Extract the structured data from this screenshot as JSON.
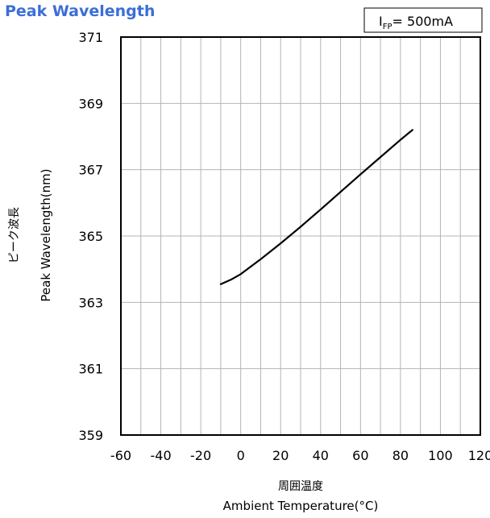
{
  "chart_data": {
    "type": "line",
    "title": "Peak Wavelength",
    "condition": {
      "symbol": "I",
      "subscript": "FP",
      "value": "= 500mA"
    },
    "xlabel_jp": "周囲温度",
    "xlabel": "Ambient Temperature(°C)",
    "ylabel_jp": "ピーク波長",
    "ylabel": "Peak Wavelength(nm)",
    "xlim": [
      -60,
      120
    ],
    "ylim": [
      359,
      371
    ],
    "x_ticks": [
      -60,
      -40,
      -20,
      0,
      20,
      40,
      60,
      80,
      100,
      120
    ],
    "y_ticks": [
      359,
      361,
      363,
      365,
      367,
      369,
      371
    ],
    "grid": true,
    "series": [
      {
        "x": [
          -10,
          -5,
          0,
          10,
          20,
          30,
          40,
          50,
          60,
          70,
          80,
          86
        ],
        "y": [
          363.55,
          363.68,
          363.85,
          364.3,
          364.78,
          365.28,
          365.8,
          366.33,
          366.86,
          367.38,
          367.9,
          368.2
        ]
      }
    ]
  }
}
